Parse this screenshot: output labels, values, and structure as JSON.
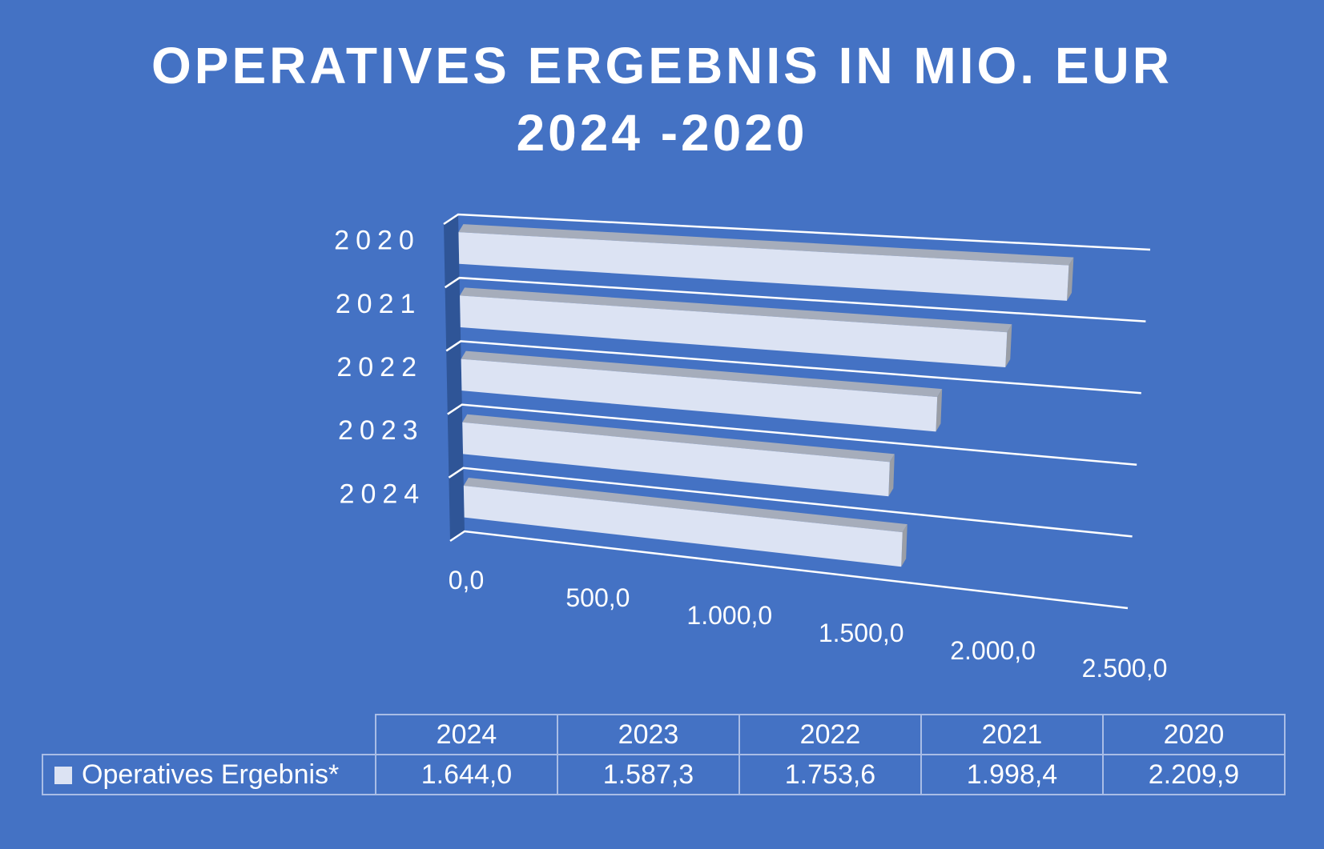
{
  "chart_data": {
    "type": "bar",
    "orientation": "horizontal-3d",
    "title": "OPERATIVES ERGEBNIS IN MIO. EUR",
    "subtitle": "2024 -2020",
    "categories": [
      "2024",
      "2023",
      "2022",
      "2021",
      "2020"
    ],
    "series": [
      {
        "name": "Operatives Ergebnis*",
        "values": [
          1644.0,
          1587.3,
          1753.6,
          1998.4,
          2209.9
        ]
      }
    ],
    "value_labels": [
      "1.644,0",
      "1.587,3",
      "1.753,6",
      "1.998,4",
      "2.209,9"
    ],
    "xlim": [
      0,
      2500
    ],
    "ticks": [
      "0,0",
      "500,0",
      "1.000,0",
      "1.500,0",
      "2.000,0",
      "2.500,0"
    ],
    "grid": true,
    "data_table": true,
    "colors": {
      "background": "#4472C4",
      "bar_front": "#DCE3F3",
      "bar_top": "#A6ADBB",
      "bar_end": "#9A9EA6",
      "wall": "#2F5597"
    }
  }
}
